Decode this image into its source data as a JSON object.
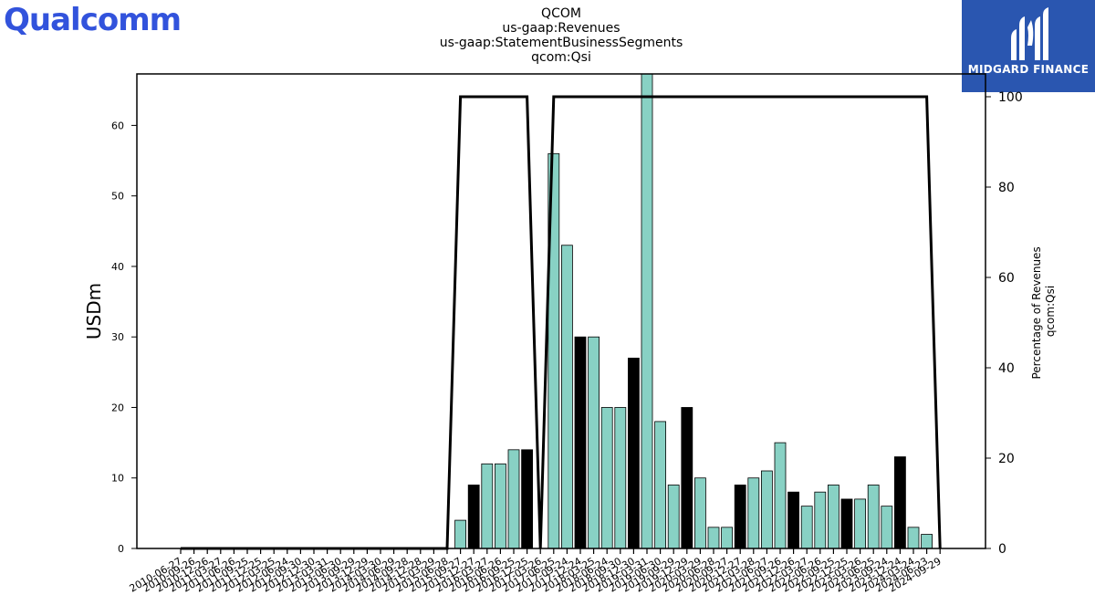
{
  "brand": {
    "left_logo": "Qualcomm",
    "right_logo": "MIDGARD FINANCE",
    "left_color": "#3253dc",
    "right_bg": "#2a56b0"
  },
  "chart_data": {
    "type": "bar",
    "title_lines": [
      "QCOM",
      "us-gaap:Revenues",
      "us-gaap:StatementBusinessSegments",
      "qcom:Qsi"
    ],
    "ylabel": "USDm",
    "y2label_lines": [
      "Percentage of Revenues",
      "qcom:Qsi"
    ],
    "ylim": [
      0,
      67.3
    ],
    "y2lim": [
      0,
      100
    ],
    "yticks": [
      0,
      10,
      20,
      30,
      40,
      50,
      60
    ],
    "y2ticks": [
      0,
      20,
      40,
      60,
      80,
      100
    ],
    "grid": false,
    "colors": {
      "bar": "#88d1c4",
      "bar_alt": "#000000",
      "line": "#000000"
    },
    "categories": [
      "2010-06-27",
      "2010-09-26",
      "2010-12-26",
      "2011-03-27",
      "2011-06-26",
      "2011-09-25",
      "2011-12-25",
      "2012-03-25",
      "2012-06-24",
      "2012-09-30",
      "2012-12-30",
      "2013-03-31",
      "2013-06-30",
      "2013-09-29",
      "2013-12-29",
      "2014-03-30",
      "2014-06-29",
      "2014-09-28",
      "2014-12-28",
      "2015-03-29",
      "2015-06-28",
      "2015-09-27",
      "2015-12-27",
      "2016-03-27",
      "2016-06-26",
      "2016-09-25",
      "2016-12-25",
      "2017-03-26",
      "2017-06-25",
      "2017-09-24",
      "2017-12-24",
      "2018-03-25",
      "2018-06-24",
      "2018-09-30",
      "2018-12-30",
      "2019-03-31",
      "2019-06-30",
      "2019-09-29",
      "2019-12-29",
      "2020-03-29",
      "2020-06-28",
      "2020-09-27",
      "2020-12-27",
      "2021-03-28",
      "2021-06-27",
      "2021-09-26",
      "2021-12-26",
      "2022-03-27",
      "2022-06-26",
      "2022-09-25",
      "2022-12-25",
      "2023-03-26",
      "2023-06-25",
      "2023-09-24",
      "2023-12-24",
      "2024-03-24",
      "2024-06-23",
      "2024-09-29"
    ],
    "values": [
      0,
      0,
      0,
      0,
      0,
      0,
      0,
      0,
      0,
      0,
      0,
      0,
      0,
      0,
      0,
      0,
      0,
      0,
      0,
      0,
      0,
      4,
      9,
      12,
      12,
      14,
      14,
      0,
      56,
      43,
      30,
      30,
      20,
      20,
      27,
      68,
      18,
      9,
      20,
      10,
      3,
      3,
      9,
      10,
      11,
      15,
      8,
      6,
      8,
      9,
      7,
      7,
      9,
      6,
      13,
      3,
      2,
      0
    ],
    "bar_style": [
      "bar",
      "bar",
      "bar",
      "bar",
      "bar",
      "bar",
      "bar",
      "bar",
      "bar",
      "bar",
      "bar",
      "bar",
      "bar",
      "bar",
      "bar",
      "bar",
      "bar",
      "bar",
      "bar",
      "bar",
      "bar",
      "bar",
      "bar_alt",
      "bar",
      "bar",
      "bar",
      "bar_alt",
      "bar",
      "bar",
      "bar",
      "bar_alt",
      "bar",
      "bar",
      "bar",
      "bar_alt",
      "bar",
      "bar",
      "bar",
      "bar_alt",
      "bar",
      "bar",
      "bar",
      "bar_alt",
      "bar",
      "bar",
      "bar",
      "bar_alt",
      "bar",
      "bar",
      "bar",
      "bar_alt",
      "bar",
      "bar",
      "bar",
      "bar_alt",
      "bar",
      "bar",
      "bar"
    ],
    "percentages": [
      0,
      0,
      0,
      0,
      0,
      0,
      0,
      0,
      0,
      0,
      0,
      0,
      0,
      0,
      0,
      0,
      0,
      0,
      0,
      0,
      0,
      100,
      100,
      100,
      100,
      100,
      100,
      0,
      100,
      100,
      100,
      100,
      100,
      100,
      100,
      100,
      100,
      100,
      100,
      100,
      100,
      100,
      100,
      100,
      100,
      100,
      100,
      100,
      100,
      100,
      100,
      100,
      100,
      100,
      100,
      100,
      100,
      0
    ]
  }
}
